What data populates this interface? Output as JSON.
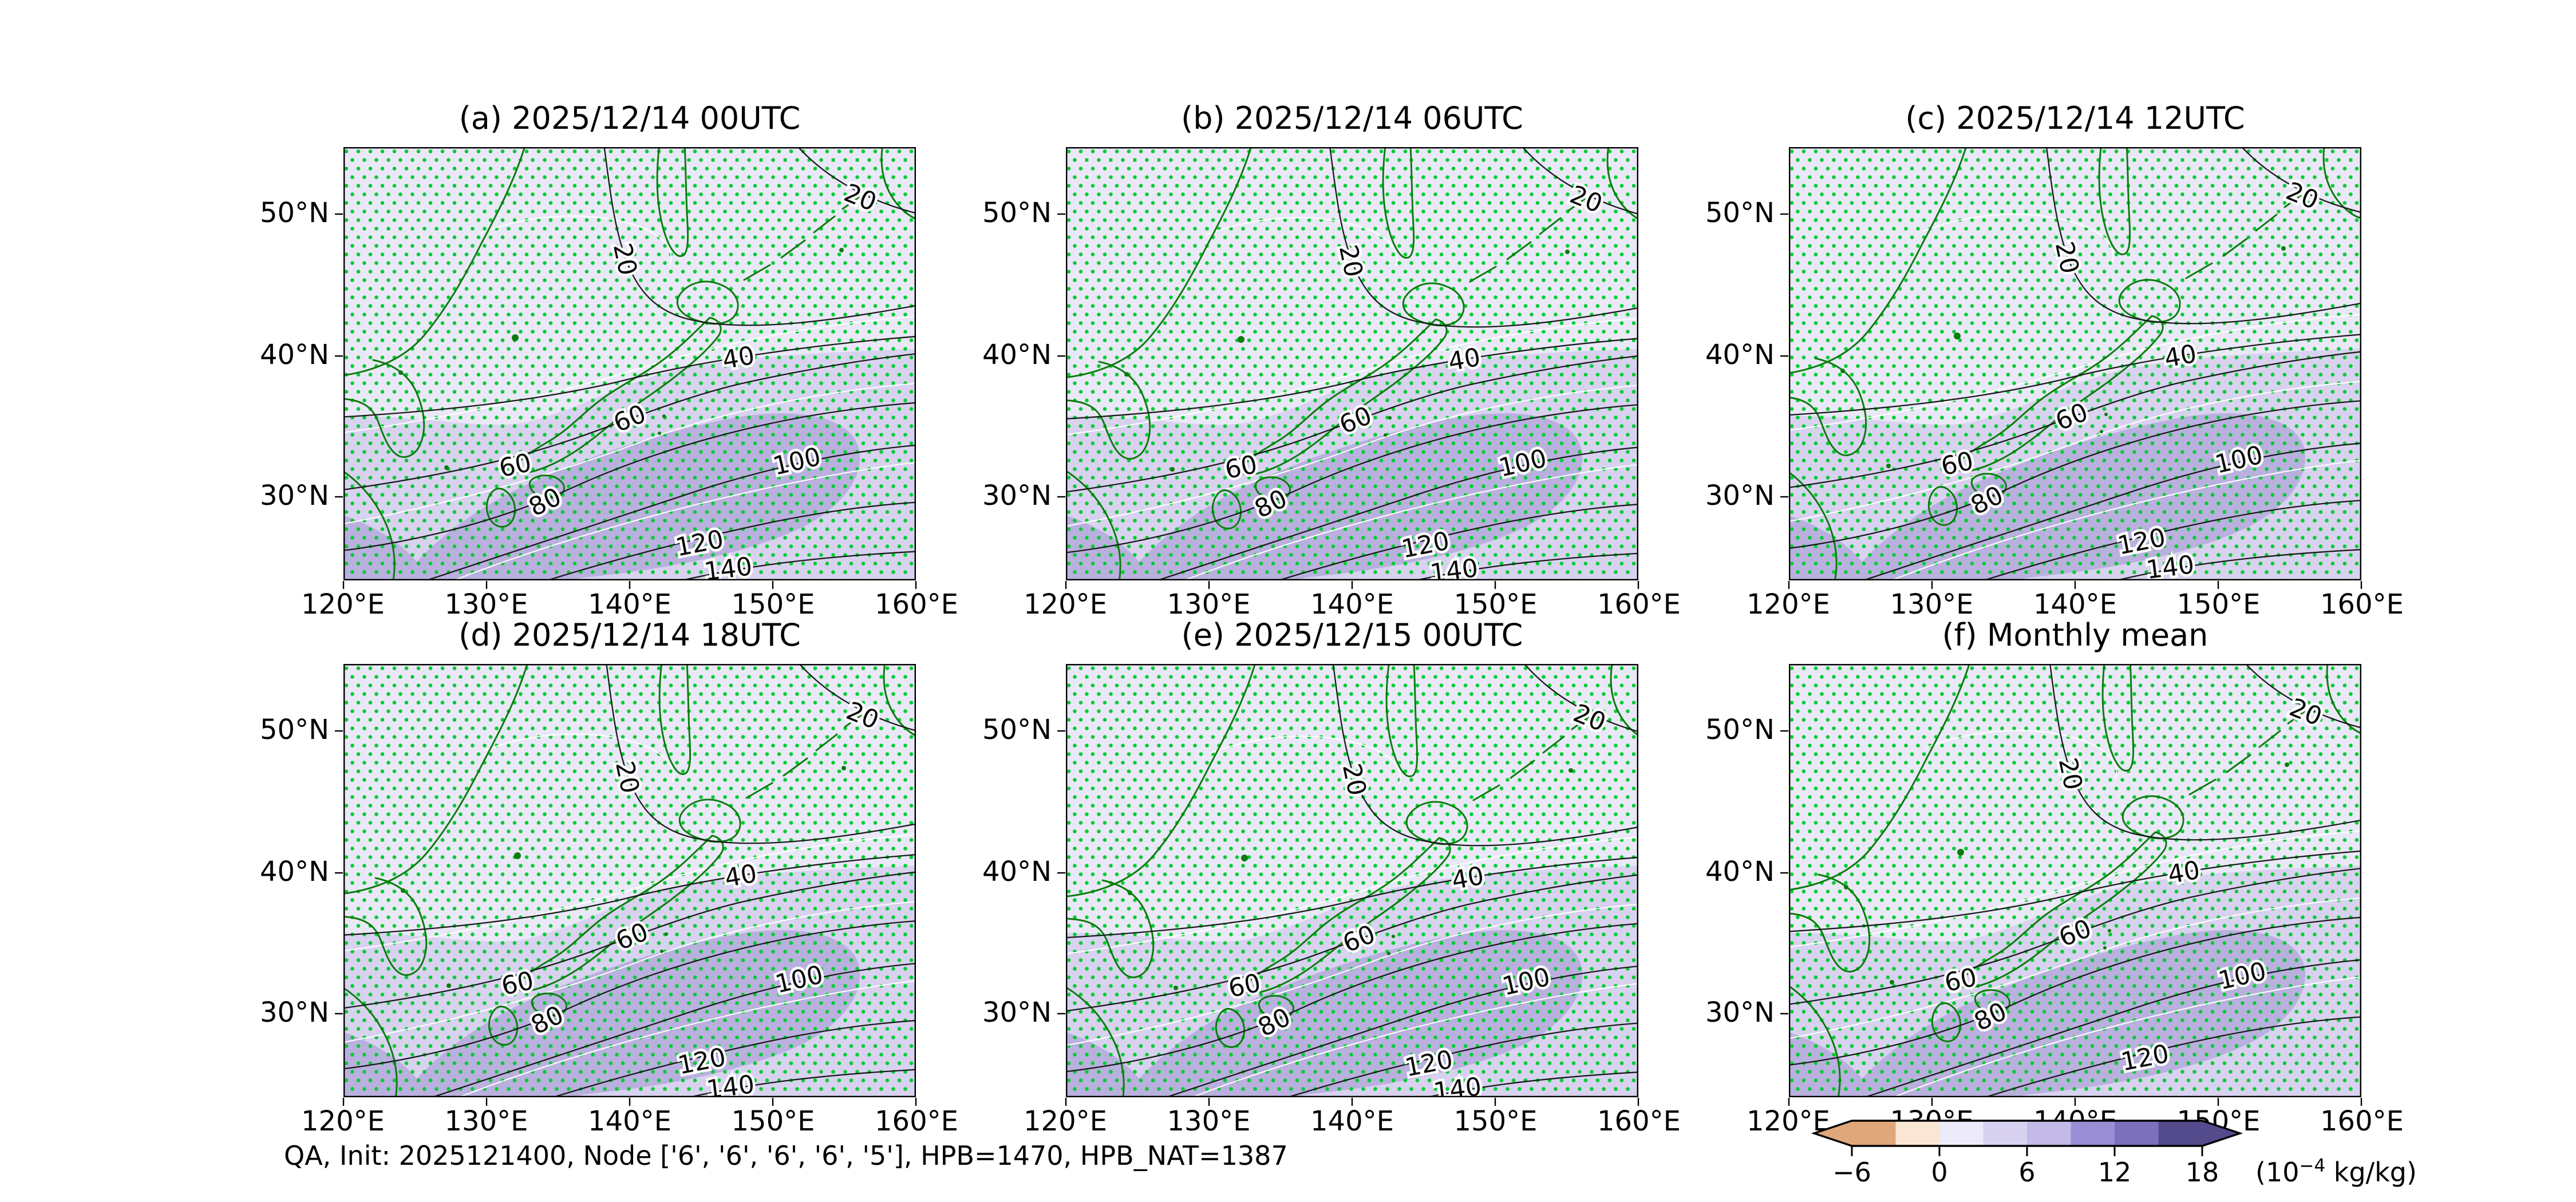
{
  "panels": [
    {
      "id": "a",
      "title": "(a) 2025/12/14 00UTC",
      "contour_levels": [
        20,
        40,
        60,
        80,
        100,
        120,
        140
      ]
    },
    {
      "id": "b",
      "title": "(b) 2025/12/14 06UTC",
      "contour_levels": [
        20,
        40,
        60,
        80,
        100,
        120,
        140
      ]
    },
    {
      "id": "c",
      "title": "(c) 2025/12/14 12UTC",
      "contour_levels": [
        20,
        40,
        60,
        80,
        100,
        120,
        140
      ]
    },
    {
      "id": "d",
      "title": "(d) 2025/12/14 18UTC",
      "contour_levels": [
        20,
        40,
        60,
        80,
        100,
        120,
        140
      ]
    },
    {
      "id": "e",
      "title": "(e) 2025/12/15 00UTC",
      "contour_levels": [
        20,
        40,
        60,
        80,
        100,
        120,
        140
      ]
    },
    {
      "id": "f",
      "title": "(f) Monthly mean",
      "contour_levels": [
        20,
        40,
        60,
        80,
        100,
        120
      ]
    }
  ],
  "axes": {
    "x_ticks": [
      "120°E",
      "130°E",
      "140°E",
      "150°E",
      "160°E"
    ],
    "y_ticks": [
      "50°N",
      "40°N",
      "30°N"
    ]
  },
  "annotation": "QA, Init: 2025121400, Node ['6', '6', '6', '6', '5'], HPB=1470, HPB_NAT=1387",
  "colorbar": {
    "tick_labels": [
      "−6",
      "0",
      "6",
      "12",
      "18"
    ],
    "unit_prefix": "(10",
    "unit_exponent": "−4",
    "unit_suffix": " kg/kg)",
    "segment_colors": [
      "#dfa77a",
      "#f9e6d5",
      "#edeafa",
      "#d8d2f0",
      "#c3bae8",
      "#9a8ed6",
      "#7c70bc",
      "#544b8c"
    ],
    "under_color": "#dfa77a",
    "over_color": "#544b8c"
  },
  "map_colors": {
    "shade_low": "#eae8f7",
    "shade_mid": "#d8d2ef",
    "shade_high": "#bab0de",
    "stipple": "#00cc33",
    "coastline": "#0b7c0b",
    "contour": "#1a1a1a",
    "clim_contour": "#ffffff"
  },
  "chart_data": {
    "type": "heatmap",
    "subtype": "geographic-contour-map-grid",
    "variable": "QA",
    "panels": [
      {
        "label": "(a)",
        "title": "2025/12/14 00UTC",
        "contour_levels": [
          20,
          40,
          60,
          80,
          100,
          120,
          140
        ]
      },
      {
        "label": "(b)",
        "title": "2025/12/14 06UTC",
        "contour_levels": [
          20,
          40,
          60,
          80,
          100,
          120,
          140
        ]
      },
      {
        "label": "(c)",
        "title": "2025/12/14 12UTC",
        "contour_levels": [
          20,
          40,
          60,
          80,
          100,
          120,
          140
        ]
      },
      {
        "label": "(d)",
        "title": "2025/12/14 18UTC",
        "contour_levels": [
          20,
          40,
          60,
          80,
          100,
          120,
          140
        ]
      },
      {
        "label": "(e)",
        "title": "2025/12/15 00UTC",
        "contour_levels": [
          20,
          40,
          60,
          80,
          100,
          120,
          140
        ]
      },
      {
        "label": "(f)",
        "title": "Monthly mean",
        "contour_levels": [
          20,
          40,
          60,
          80,
          100,
          120
        ]
      }
    ],
    "lon_ticks_deg_e": [
      120,
      130,
      140,
      150,
      160
    ],
    "lat_ticks_deg_n": [
      50,
      40,
      30
    ],
    "lon_range_deg_e": [
      120,
      160
    ],
    "lat_range_deg_n": [
      24,
      55
    ],
    "colorbar": {
      "boundaries": [
        -6,
        -3,
        0,
        3,
        6,
        9,
        12,
        15,
        18
      ],
      "tick_values": [
        -6,
        0,
        6,
        12,
        18
      ],
      "unit": "10⁻⁴ kg/kg",
      "extend": "both"
    },
    "shading_bins_visible": [
      [
        0,
        3
      ],
      [
        3,
        6
      ],
      [
        6,
        9
      ]
    ],
    "stippling": "green dot hatching over entire domain",
    "annotation": "QA, Init: 2025121400, Node ['6', '6', '6', '6', '5'], HPB=1470, HPB_NAT=1387"
  }
}
